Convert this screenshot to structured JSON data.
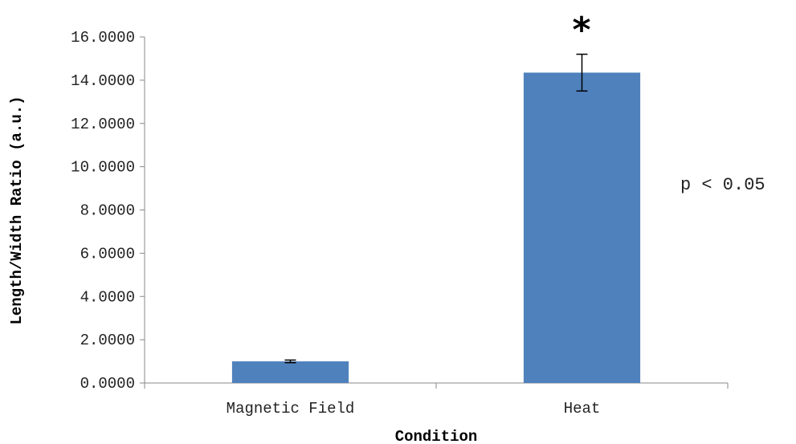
{
  "chart_data": {
    "type": "bar",
    "categories": [
      "Magnetic Field",
      "Heat"
    ],
    "series": [
      {
        "values": [
          1.0,
          14.35
        ],
        "errors": [
          0.06,
          0.85
        ],
        "color": "#4f81bd"
      }
    ],
    "xlabel": "Condition",
    "ylabel": "Length/Width Ratio (a.u.)",
    "ylim": [
      0,
      16
    ],
    "yticks": [
      "0.0000",
      "2.0000",
      "4.0000",
      "6.0000",
      "8.0000",
      "10.0000",
      "12.0000",
      "14.0000",
      "16.0000"
    ],
    "grid": false,
    "legend": "none",
    "annotations": {
      "significance_marker": "*",
      "p_value_text": "p < 0.05"
    }
  }
}
